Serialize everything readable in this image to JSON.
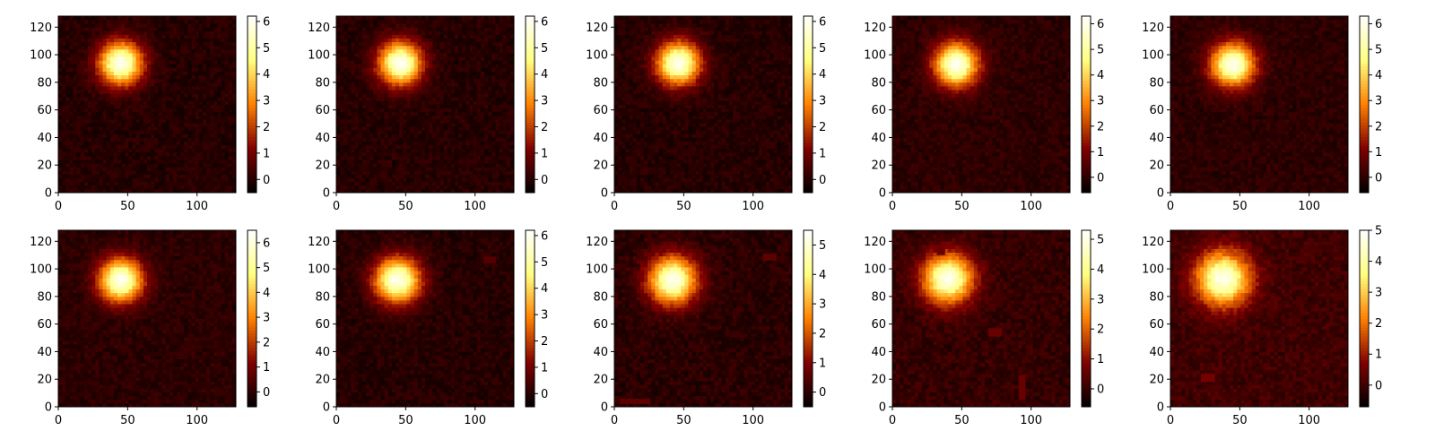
{
  "chart_data": {
    "type": "heatmap",
    "colormap": "afmhot",
    "grid": false,
    "legend": "none",
    "layout_rows": 2,
    "layout_cols": 5,
    "panels": [
      {
        "x_ticks": [
          0,
          50,
          100
        ],
        "y_ticks": [
          0,
          20,
          40,
          60,
          80,
          100,
          120
        ],
        "xlim": [
          0,
          128
        ],
        "ylim": [
          0,
          128
        ],
        "blob": {
          "cx": 45,
          "cy": 94,
          "sigma": 11
        },
        "colorbar": {
          "vmin": -0.5,
          "vmax": 6.2,
          "ticks": [
            0,
            1,
            2,
            3,
            4,
            5,
            6
          ]
        },
        "artifacts": []
      },
      {
        "x_ticks": [
          0,
          50,
          100
        ],
        "y_ticks": [
          0,
          20,
          40,
          60,
          80,
          100,
          120
        ],
        "xlim": [
          0,
          128
        ],
        "ylim": [
          0,
          128
        ],
        "blob": {
          "cx": 46,
          "cy": 94,
          "sigma": 11
        },
        "colorbar": {
          "vmin": -0.5,
          "vmax": 6.2,
          "ticks": [
            0,
            1,
            2,
            3,
            4,
            5,
            6
          ]
        },
        "artifacts": []
      },
      {
        "x_ticks": [
          0,
          50,
          100
        ],
        "y_ticks": [
          0,
          20,
          40,
          60,
          80,
          100,
          120
        ],
        "xlim": [
          0,
          128
        ],
        "ylim": [
          0,
          128
        ],
        "blob": {
          "cx": 46,
          "cy": 94,
          "sigma": 11
        },
        "colorbar": {
          "vmin": -0.5,
          "vmax": 6.2,
          "ticks": [
            0,
            1,
            2,
            3,
            4,
            5,
            6
          ]
        },
        "artifacts": []
      },
      {
        "x_ticks": [
          0,
          50,
          100
        ],
        "y_ticks": [
          0,
          20,
          40,
          60,
          80,
          100,
          120
        ],
        "xlim": [
          0,
          128
        ],
        "ylim": [
          0,
          128
        ],
        "blob": {
          "cx": 46,
          "cy": 93,
          "sigma": 11
        },
        "colorbar": {
          "vmin": -0.6,
          "vmax": 6.3,
          "ticks": [
            0,
            1,
            2,
            3,
            4,
            5,
            6
          ]
        },
        "artifacts": []
      },
      {
        "x_ticks": [
          0,
          50,
          100
        ],
        "y_ticks": [
          0,
          20,
          40,
          60,
          80,
          100,
          120
        ],
        "xlim": [
          0,
          128
        ],
        "ylim": [
          0,
          128
        ],
        "blob": {
          "cx": 45,
          "cy": 93,
          "sigma": 11
        },
        "colorbar": {
          "vmin": -0.6,
          "vmax": 6.3,
          "ticks": [
            0,
            1,
            2,
            3,
            4,
            5,
            6
          ]
        },
        "artifacts": []
      },
      {
        "x_ticks": [
          0,
          50,
          100
        ],
        "y_ticks": [
          0,
          20,
          40,
          60,
          80,
          100,
          120
        ],
        "xlim": [
          0,
          128
        ],
        "ylim": [
          0,
          128
        ],
        "blob": {
          "cx": 45,
          "cy": 92,
          "sigma": 11
        },
        "colorbar": {
          "vmin": -0.6,
          "vmax": 6.5,
          "ticks": [
            0,
            1,
            2,
            3,
            4,
            5,
            6
          ]
        },
        "artifacts": []
      },
      {
        "x_ticks": [
          0,
          50,
          100
        ],
        "y_ticks": [
          0,
          20,
          40,
          60,
          80,
          100,
          120
        ],
        "xlim": [
          0,
          128
        ],
        "ylim": [
          0,
          128
        ],
        "blob": {
          "cx": 44,
          "cy": 92,
          "sigma": 11.5
        },
        "colorbar": {
          "vmin": -0.5,
          "vmax": 6.2,
          "ticks": [
            0,
            1,
            2,
            3,
            4,
            5,
            6
          ]
        },
        "artifacts": [
          {
            "x0": 106,
            "x1": 115,
            "y0": 104,
            "y1": 109
          }
        ]
      },
      {
        "x_ticks": [
          0,
          50,
          100
        ],
        "y_ticks": [
          0,
          20,
          40,
          60,
          80,
          100,
          120
        ],
        "xlim": [
          0,
          128
        ],
        "ylim": [
          0,
          128
        ],
        "blob": {
          "cx": 42,
          "cy": 92,
          "sigma": 12
        },
        "colorbar": {
          "vmin": -0.5,
          "vmax": 5.5,
          "ticks": [
            0,
            1,
            2,
            3,
            4,
            5
          ]
        },
        "artifacts": [
          {
            "x0": 107,
            "x1": 117,
            "y0": 106,
            "y1": 111
          },
          {
            "x0": 4,
            "x1": 26,
            "y0": 2,
            "y1": 6
          }
        ]
      },
      {
        "x_ticks": [
          0,
          50,
          100
        ],
        "y_ticks": [
          0,
          20,
          40,
          60,
          80,
          100,
          120
        ],
        "xlim": [
          0,
          128
        ],
        "ylim": [
          0,
          128
        ],
        "blob": {
          "cx": 40,
          "cy": 93,
          "sigma": 12.5
        },
        "colorbar": {
          "vmin": -0.6,
          "vmax": 5.3,
          "ticks": [
            0,
            1,
            2,
            3,
            4,
            5
          ]
        },
        "artifacts": [
          {
            "x0": 69,
            "x1": 79,
            "y0": 51,
            "y1": 57
          },
          {
            "x0": 91,
            "x1": 96,
            "y0": 5,
            "y1": 23
          },
          {
            "x0": 32,
            "x1": 38,
            "y0": 110,
            "y1": 115
          }
        ]
      },
      {
        "x_ticks": [
          0,
          50,
          100
        ],
        "y_ticks": [
          0,
          20,
          40,
          60,
          80,
          100,
          120
        ],
        "xlim": [
          0,
          128
        ],
        "ylim": [
          0,
          128
        ],
        "blob": {
          "cx": 38,
          "cy": 93,
          "sigma": 13.5
        },
        "colorbar": {
          "vmin": -0.7,
          "vmax": 5.0,
          "ticks": [
            0,
            1,
            2,
            3,
            4,
            5
          ]
        },
        "artifacts": [
          {
            "x0": 22,
            "x1": 32,
            "y0": 18,
            "y1": 24
          }
        ]
      }
    ]
  }
}
